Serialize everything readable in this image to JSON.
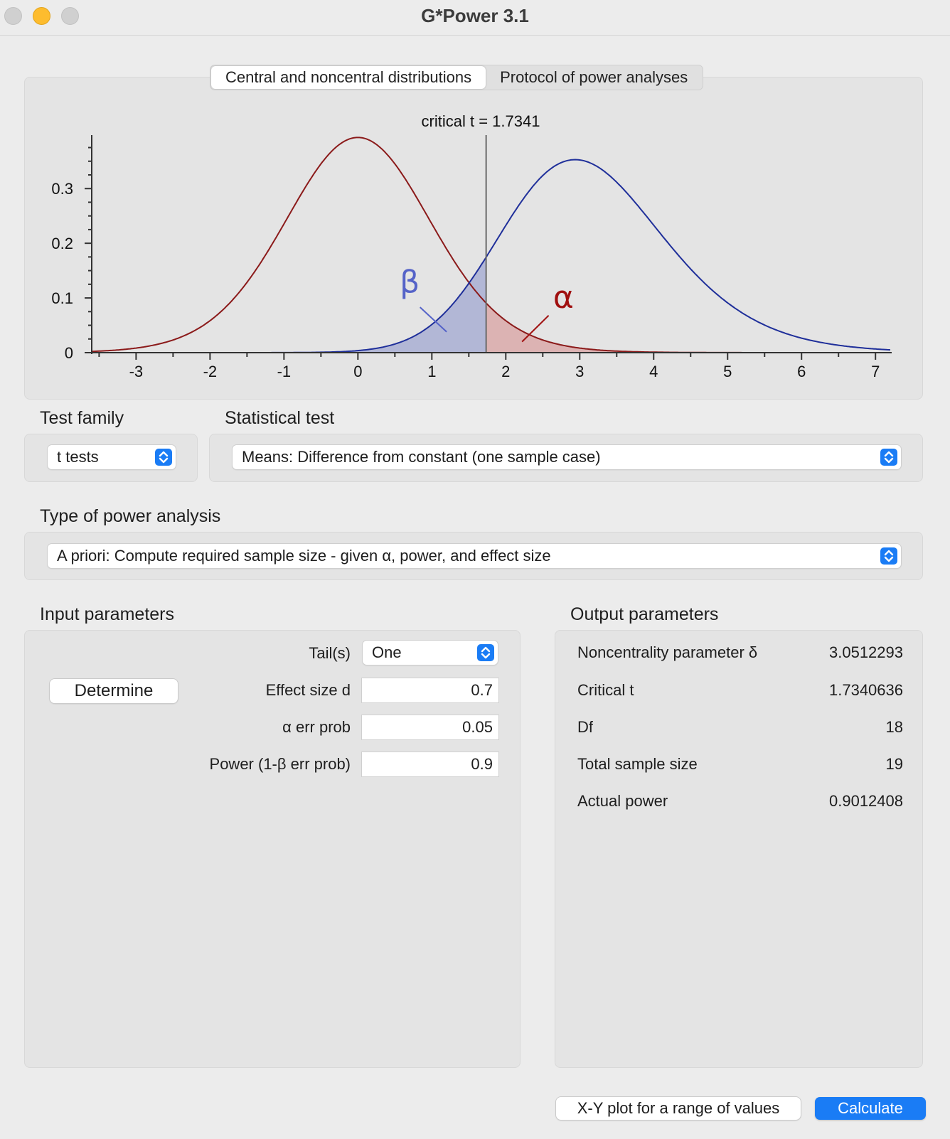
{
  "window": {
    "title": "G*Power 3.1"
  },
  "tabs": [
    {
      "label": "Central and noncentral distributions",
      "active": true
    },
    {
      "label": "Protocol of power analyses",
      "active": false
    }
  ],
  "chart_data": {
    "type": "line",
    "title": "critical t = 1.7341",
    "critical_t": 1.7341,
    "x_ticks": [
      "-3",
      "-2",
      "-1",
      "0",
      "1",
      "2",
      "3",
      "4",
      "5",
      "6",
      "7"
    ],
    "y_ticks": [
      "0",
      "0.1",
      "0.2",
      "0.3"
    ],
    "xlim": [
      -3.6,
      7.2
    ],
    "ylim": [
      0,
      0.39
    ],
    "series": [
      {
        "name": "central",
        "df": 18,
        "noncentrality": 0,
        "color": "#8b1a1a"
      },
      {
        "name": "noncentral",
        "df": 18,
        "noncentrality": 3.0512293,
        "color": "#1f2f9a"
      }
    ],
    "shaded": [
      {
        "label": "β",
        "color": "#5563c8",
        "fill": "#b2b7d6"
      },
      {
        "label": "α",
        "color": "#a01010",
        "fill": "#dcb3b3"
      }
    ]
  },
  "test_family": {
    "label": "Test family",
    "value": "t tests"
  },
  "statistical_test": {
    "label": "Statistical test",
    "value": "Means: Difference from constant (one sample case)"
  },
  "power_analysis": {
    "label": "Type of power analysis",
    "value": "A priori: Compute required sample size - given α, power, and effect size"
  },
  "input": {
    "title": "Input parameters",
    "determine_label": "Determine",
    "tails": {
      "label": "Tail(s)",
      "value": "One"
    },
    "effect_size": {
      "label": "Effect size d",
      "value": "0.7"
    },
    "alpha": {
      "label": "α err prob",
      "value": "0.05"
    },
    "power": {
      "label": "Power (1-β err prob)",
      "value": "0.9"
    }
  },
  "output": {
    "title": "Output parameters",
    "rows": [
      {
        "label": "Noncentrality parameter δ",
        "value": "3.0512293"
      },
      {
        "label": "Critical t",
        "value": "1.7340636"
      },
      {
        "label": "Df",
        "value": "18"
      },
      {
        "label": "Total sample size",
        "value": "19"
      },
      {
        "label": "Actual power",
        "value": "0.9012408"
      }
    ]
  },
  "footer": {
    "xy_plot_label": "X-Y plot for a range of values",
    "calculate_label": "Calculate"
  },
  "icons": {
    "select_chevron": "updown-chevron-icon"
  }
}
